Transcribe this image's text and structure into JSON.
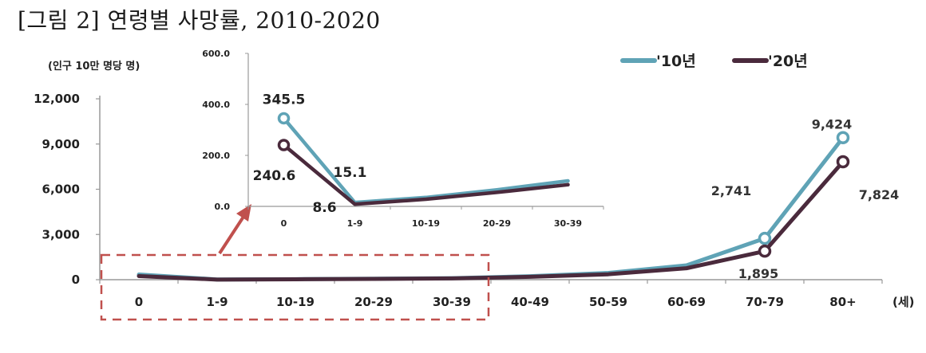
{
  "title": "[그림 2] 연령별 사망률, 2010-2020",
  "colors": {
    "s2010": "#5fa3b6",
    "s2020": "#4a2a3c",
    "highlight": "#c0504d",
    "axis": "#999999"
  },
  "chart_data": [
    {
      "type": "line",
      "unit_label": "(인구 10만 명당 명)",
      "x_axis_suffix": "(세)",
      "categories": [
        "0",
        "1-9",
        "10-19",
        "20-29",
        "30-39",
        "40-49",
        "50-59",
        "60-69",
        "70-79",
        "80+"
      ],
      "ylim": [
        0,
        12000
      ],
      "yticks": [
        0,
        3000,
        6000,
        9000,
        12000
      ],
      "ytick_labels": [
        "0",
        "3,000",
        "6,000",
        "9,000",
        "12,000"
      ],
      "legend_position": "top-right",
      "series": [
        {
          "name": "'10년",
          "color": "#5fa3b6",
          "values": [
            345.5,
            15.1,
            35,
            65,
            100,
            230,
            450,
            950,
            2741,
            9424
          ],
          "marker_indices": [
            8,
            9
          ],
          "labels": {
            "8": "2,741",
            "9": "9,424"
          }
        },
        {
          "name": "'20년",
          "color": "#4a2a3c",
          "values": [
            240.6,
            8.6,
            28,
            55,
            85,
            190,
            360,
            760,
            1895,
            7824
          ],
          "marker_indices": [
            8,
            9
          ],
          "labels": {
            "8": "1,895",
            "9": "7,824"
          }
        }
      ]
    },
    {
      "type": "line",
      "inset": true,
      "categories": [
        "0",
        "1-9",
        "10-19",
        "20-29",
        "30-39"
      ],
      "ylim": [
        0,
        600
      ],
      "yticks": [
        0,
        200,
        400,
        600
      ],
      "ytick_labels": [
        "0.0",
        "200.0",
        "400.0",
        "600.0"
      ],
      "series": [
        {
          "name": "'10년",
          "values": [
            345.5,
            15.1,
            35,
            65,
            100
          ],
          "marker_indices": [
            0
          ],
          "labels": {
            "0": "345.5",
            "1": "15.1"
          }
        },
        {
          "name": "'20년",
          "values": [
            240.6,
            8.6,
            28,
            55,
            85
          ],
          "marker_indices": [
            0
          ],
          "labels": {
            "0": "240.6",
            "1": "8.6"
          }
        }
      ]
    }
  ]
}
